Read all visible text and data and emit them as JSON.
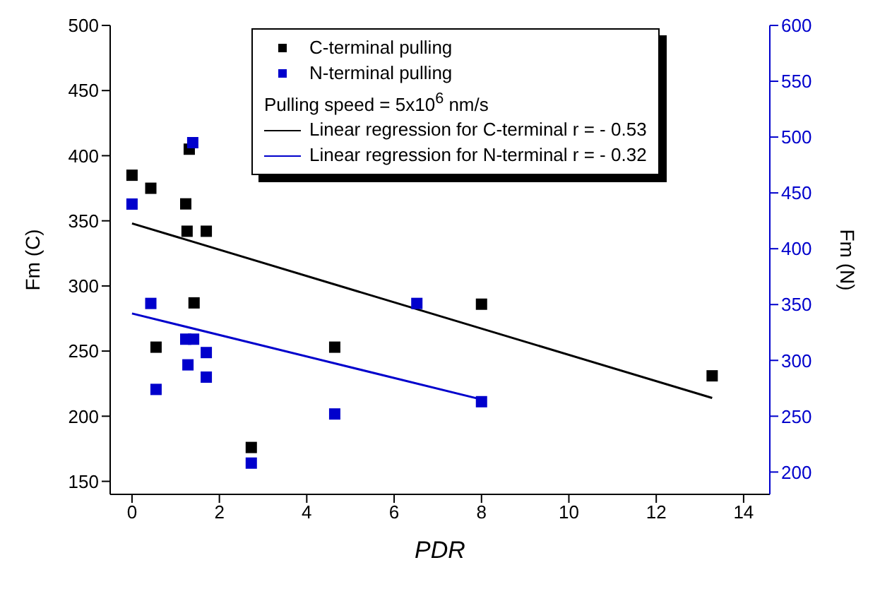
{
  "chart_data": {
    "type": "scatter",
    "xlabel": "PDR",
    "ylabel": "Fm (C)",
    "y2label": "Fm (N)",
    "xlim": [
      -0.5,
      14.6
    ],
    "xticks": [
      0,
      2,
      4,
      6,
      8,
      10,
      12,
      14
    ],
    "ylim": [
      140,
      500
    ],
    "yticks": [
      150,
      200,
      250,
      300,
      350,
      400,
      450,
      500
    ],
    "y2lim": [
      180,
      600
    ],
    "y2ticks": [
      200,
      250,
      300,
      350,
      400,
      450,
      500,
      550,
      600
    ],
    "marker": "square",
    "legend": "top",
    "annotations": [
      "Pulling speed  = 5x10$^{6}$ nm/s"
    ],
    "series": [
      {
        "name": "C-terminal pulling",
        "color": "#000000",
        "x": [
          0,
          0.43,
          1.23,
          1.31,
          1.26,
          1.7,
          1.42,
          0.55,
          4.64,
          2.73,
          8.0,
          13.28
        ],
        "values": [
          385,
          375,
          363,
          405,
          342,
          342,
          287,
          253,
          253,
          176,
          286,
          231
        ]
      },
      {
        "name": "N-terminal pulling",
        "color": "#0000cc",
        "axis": "y2",
        "x": [
          0,
          1.39,
          0.43,
          1.23,
          1.41,
          1.7,
          1.28,
          0.55,
          1.7,
          6.52,
          8.0,
          4.64,
          2.73
        ],
        "values": [
          440,
          495,
          351,
          319,
          319,
          307,
          296,
          274,
          285,
          351,
          263,
          252,
          208
        ]
      },
      {
        "name": "Linear regression for C-terminal r = - 0.53",
        "type": "line",
        "color": "#000000",
        "marker": "none",
        "x": [
          0,
          13.28
        ],
        "values": [
          348,
          214
        ]
      },
      {
        "name": "Linear regression for N-terminal r = - 0.32",
        "type": "line",
        "color": "#0000cc",
        "marker": "none",
        "axis": "y2",
        "x": [
          0,
          8.0
        ],
        "values": [
          342,
          265
        ]
      }
    ]
  }
}
